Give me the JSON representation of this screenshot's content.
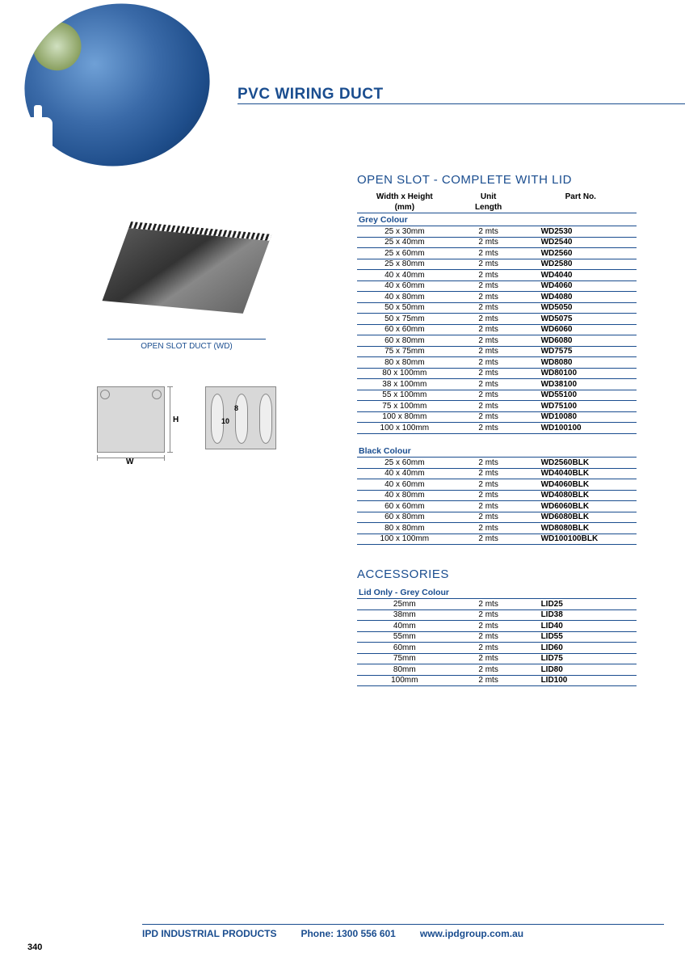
{
  "page": {
    "title": "PVC WIRING DUCT",
    "product_caption": "OPEN SLOT DUCT (WD)",
    "page_number": "340",
    "colors": {
      "brand": "#1a4d8f",
      "background": "#ffffff",
      "diagram_fill": "#d8d8d8"
    }
  },
  "diagram": {
    "label_h": "H",
    "label_w": "W",
    "dim_8": "8",
    "dim_10": "10"
  },
  "section1": {
    "heading": "OPEN SLOT - COMPLETE WITH LID",
    "columns": {
      "wh1": "Width x Height",
      "wh2": "(mm)",
      "unit1": "Unit",
      "unit2": "Length",
      "part": "Part No."
    },
    "grey_label": "Grey Colour",
    "grey_rows": [
      {
        "wh": "25 x 30mm",
        "unit": "2 mts",
        "part": "WD2530"
      },
      {
        "wh": "25 x 40mm",
        "unit": "2 mts",
        "part": "WD2540"
      },
      {
        "wh": "25 x 60mm",
        "unit": "2 mts",
        "part": "WD2560"
      },
      {
        "wh": "25 x 80mm",
        "unit": "2 mts",
        "part": "WD2580"
      },
      {
        "wh": "40 x 40mm",
        "unit": "2 mts",
        "part": "WD4040"
      },
      {
        "wh": "40 x 60mm",
        "unit": "2 mts",
        "part": "WD4060"
      },
      {
        "wh": "40 x 80mm",
        "unit": "2 mts",
        "part": "WD4080"
      },
      {
        "wh": "50 x 50mm",
        "unit": "2 mts",
        "part": "WD5050"
      },
      {
        "wh": "50 x 75mm",
        "unit": "2 mts",
        "part": "WD5075"
      },
      {
        "wh": "60 x 60mm",
        "unit": "2 mts",
        "part": "WD6060"
      },
      {
        "wh": "60 x 80mm",
        "unit": "2 mts",
        "part": "WD6080"
      },
      {
        "wh": "75 x 75mm",
        "unit": "2 mts",
        "part": "WD7575"
      },
      {
        "wh": "80 x 80mm",
        "unit": "2 mts",
        "part": "WD8080"
      },
      {
        "wh": "80 x 100mm",
        "unit": "2 mts",
        "part": "WD80100"
      },
      {
        "wh": "38 x 100mm",
        "unit": "2 mts",
        "part": "WD38100"
      },
      {
        "wh": "55 x 100mm",
        "unit": "2 mts",
        "part": "WD55100"
      },
      {
        "wh": "75 x 100mm",
        "unit": "2 mts",
        "part": "WD75100"
      },
      {
        "wh": "100 x 80mm",
        "unit": "2 mts",
        "part": "WD10080"
      },
      {
        "wh": "100 x 100mm",
        "unit": "2 mts",
        "part": "WD100100"
      }
    ],
    "black_label": "Black Colour",
    "black_rows": [
      {
        "wh": "25 x 60mm",
        "unit": "2 mts",
        "part": "WD2560BLK"
      },
      {
        "wh": "40 x 40mm",
        "unit": "2 mts",
        "part": "WD4040BLK"
      },
      {
        "wh": "40 x 60mm",
        "unit": "2 mts",
        "part": "WD4060BLK"
      },
      {
        "wh": "40 x 80mm",
        "unit": "2 mts",
        "part": "WD4080BLK"
      },
      {
        "wh": "60 x 60mm",
        "unit": "2 mts",
        "part": "WD6060BLK"
      },
      {
        "wh": "60 x 80mm",
        "unit": "2 mts",
        "part": "WD6080BLK"
      },
      {
        "wh": "80 x 80mm",
        "unit": "2 mts",
        "part": "WD8080BLK"
      },
      {
        "wh": "100 x 100mm",
        "unit": "2 mts",
        "part": "WD100100BLK"
      }
    ]
  },
  "section2": {
    "heading": "ACCESSORIES",
    "lid_label": "Lid Only - Grey Colour",
    "rows": [
      {
        "wh": "25mm",
        "unit": "2 mts",
        "part": "LID25"
      },
      {
        "wh": "38mm",
        "unit": "2 mts",
        "part": "LID38"
      },
      {
        "wh": "40mm",
        "unit": "2 mts",
        "part": "LID40"
      },
      {
        "wh": "55mm",
        "unit": "2 mts",
        "part": "LID55"
      },
      {
        "wh": "60mm",
        "unit": "2 mts",
        "part": "LID60"
      },
      {
        "wh": "75mm",
        "unit": "2 mts",
        "part": "LID75"
      },
      {
        "wh": "80mm",
        "unit": "2 mts",
        "part": "LID80"
      },
      {
        "wh": "100mm",
        "unit": "2 mts",
        "part": "LID100"
      }
    ]
  },
  "footer": {
    "company": "IPD INDUSTRIAL PRODUCTS",
    "phone": "Phone: 1300 556 601",
    "url": "www.ipdgroup.com.au"
  }
}
